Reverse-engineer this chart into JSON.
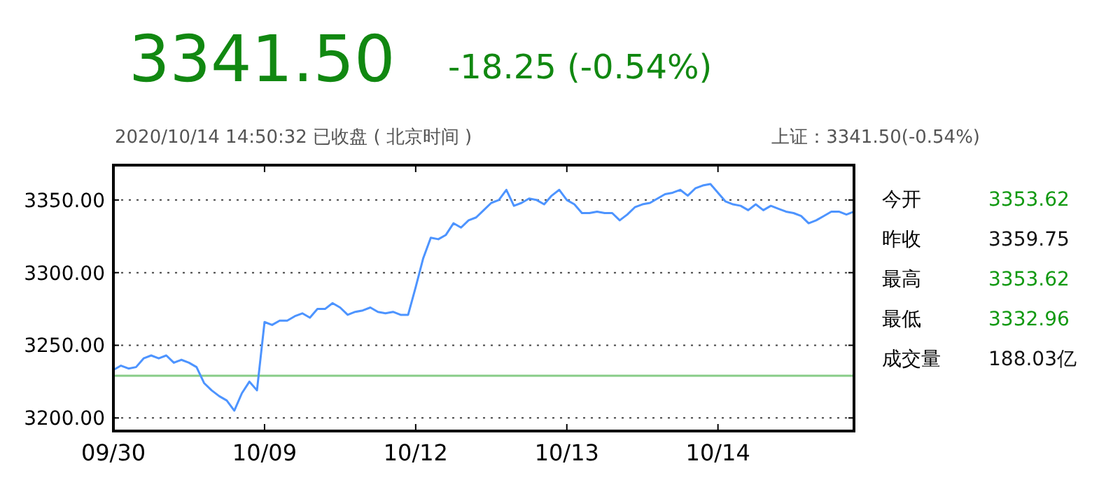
{
  "chart_data": [
    {
      "type": "line",
      "title": "3341.50",
      "subtitle": "-18.25 (-0.54%)",
      "annotations": [
        "2020/10/14 14:50:32 已收盘 ( 北京时间 )",
        "上证：3341.50(-0.54%)"
      ],
      "categories": [
        "09/30",
        null,
        null,
        null,
        null,
        null,
        null,
        null,
        null,
        null,
        null,
        null,
        null,
        null,
        null,
        null,
        null,
        null,
        null,
        null,
        "10/09",
        null,
        null,
        null,
        null,
        null,
        null,
        null,
        null,
        null,
        null,
        null,
        null,
        null,
        null,
        null,
        null,
        null,
        null,
        null,
        "10/12",
        null,
        null,
        null,
        null,
        null,
        null,
        null,
        null,
        null,
        null,
        null,
        null,
        null,
        null,
        null,
        null,
        null,
        null,
        null,
        "10/13",
        null,
        null,
        null,
        null,
        null,
        null,
        null,
        null,
        null,
        null,
        null,
        null,
        null,
        null,
        null,
        null,
        null,
        null,
        null,
        "10/14",
        null,
        null,
        null,
        null,
        null,
        null,
        null,
        null,
        null,
        null,
        null,
        null,
        null,
        null,
        null,
        null,
        null,
        null
      ],
      "ylim": [
        3191,
        3374
      ],
      "yticks": [
        {
          "value": 3200,
          "label": "3200.00"
        },
        {
          "value": 3250,
          "label": "3250.00"
        },
        {
          "value": 3300,
          "label": "3300.00"
        },
        {
          "value": 3350,
          "label": "3350.00"
        }
      ],
      "grid": "y",
      "marker": "none",
      "line_style": "solid",
      "ref_lines": [
        {
          "axis": "y",
          "value": 3229,
          "color": "#88cc88"
        }
      ],
      "series": [
        {
          "color": "#4d94ff",
          "values": [
            3233,
            3236,
            3234,
            3235,
            3241,
            3243,
            3241,
            3243,
            3238,
            3240,
            3238,
            3235,
            3224,
            3219,
            3215,
            3212,
            3205,
            3217,
            3225,
            3219,
            3266,
            3264,
            3267,
            3267,
            3270,
            3272,
            3269,
            3275,
            3275,
            3279,
            3276,
            3271,
            3273,
            3274,
            3276,
            3273,
            3272,
            3273,
            3271,
            3271,
            3290,
            3310,
            3324,
            3323,
            3326,
            3334,
            3331,
            3336,
            3338,
            3343,
            3348,
            3350,
            3357,
            3346,
            3348,
            3351,
            3350,
            3347,
            3353,
            3357,
            3350,
            3347,
            3341,
            3341,
            3342,
            3341,
            3341,
            3336,
            3340,
            3345,
            3347,
            3348,
            3351,
            3354,
            3355,
            3357,
            3353,
            3358,
            3360,
            3361,
            3355,
            3349,
            3347,
            3346,
            3343,
            3347,
            3343,
            3346,
            3344,
            3342,
            3341,
            3339,
            3334,
            3336,
            3339,
            3342,
            3342,
            3340,
            3342
          ]
        }
      ]
    },
    {
      "type": "other",
      "categories": [
        "今开",
        "昨收",
        "最高",
        "最低",
        "成交量"
      ],
      "value_labels": [
        "3353.62",
        "3359.75",
        "3353.62",
        "3332.96",
        "188.03亿"
      ],
      "colors": [
        "#119911",
        "#111111",
        "#119911",
        "#119911",
        "#111111"
      ]
    }
  ]
}
